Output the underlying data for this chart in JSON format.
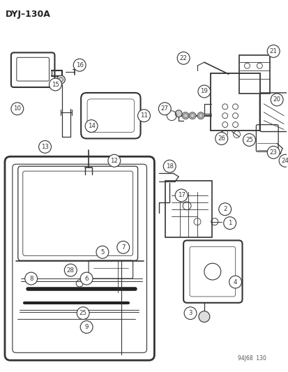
{
  "title": "DYJ-130A",
  "watermark": "94J68  130",
  "bg_color": "#ffffff",
  "lc": "#333333",
  "fig_w": 4.14,
  "fig_h": 5.33,
  "dpi": 100
}
